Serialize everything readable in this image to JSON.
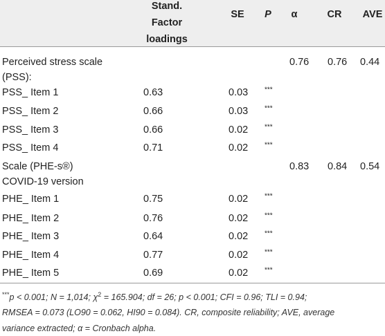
{
  "table": {
    "header": [
      "Stand. Factor loadings",
      "SE",
      "P",
      "α",
      "CR",
      "AVE"
    ],
    "rows": [
      {
        "label": [
          "Perceived stress scale",
          "(PSS):"
        ],
        "alpha": 0.76,
        "cr": 0.76,
        "ave": 0.44
      },
      {
        "label": [
          "PSS_ Item 1"
        ],
        "loading": 0.63,
        "se": 0.03,
        "p": "***"
      },
      {
        "label": [
          "PSS_ Item 2"
        ],
        "loading": 0.66,
        "se": 0.03,
        "p": "***"
      },
      {
        "label": [
          "PSS_ Item 3"
        ],
        "loading": 0.66,
        "se": 0.02,
        "p": "***"
      },
      {
        "label": [
          "PSS_ Item 4"
        ],
        "loading": 0.71,
        "se": 0.02,
        "p": "***"
      },
      {
        "label": [
          "Scale (PHE-s®)",
          "COVID-19 version"
        ],
        "alpha": 0.83,
        "cr": 0.84,
        "ave": 0.54
      },
      {
        "label": [
          "PHE_ Item 1"
        ],
        "loading": 0.75,
        "se": 0.02,
        "p": "***"
      },
      {
        "label": [
          "PHE_ Item 2"
        ],
        "loading": 0.76,
        "se": 0.02,
        "p": "***"
      },
      {
        "label": [
          "PHE_ Item 3"
        ],
        "loading": 0.64,
        "se": 0.02,
        "p": "***"
      },
      {
        "label": [
          "PHE_ Item 4"
        ],
        "loading": 0.77,
        "se": 0.02,
        "p": "***"
      },
      {
        "label": [
          "PHE_ Item 5"
        ],
        "loading": 0.69,
        "se": 0.02,
        "p": "***"
      }
    ]
  },
  "footnote": {
    "marker": "***",
    "line1_before": "p < 0.001; N = 1,014; χ",
    "line1_sup": "2",
    "line1_after": " = 165.904; df = 26; p < 0.001; CFI = 0.96; TLI = 0.94;",
    "line2": "RMSEA = 0.073 (LO90 = 0.062, HI90 = 0.084). CR, composite reliability; AVE, average",
    "line3": "variance extracted; α = Cronbach alpha."
  }
}
